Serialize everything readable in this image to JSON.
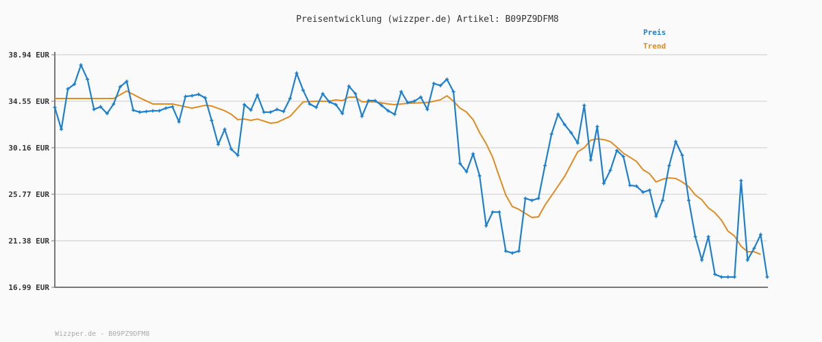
{
  "chart_data": {
    "type": "line",
    "title": "Preisentwicklung (wizzper.de) Artikel: B09PZ9DFM8",
    "xlabel": "",
    "ylabel": "",
    "ylim": [
      16.99,
      38.94
    ],
    "y_ticks": [
      "38.94 EUR",
      "34.55 EUR",
      "30.16 EUR",
      "25.77 EUR",
      "21.38 EUR",
      "16.99 EUR"
    ],
    "y_tick_values": [
      38.94,
      34.55,
      30.16,
      25.77,
      21.38,
      16.99
    ],
    "grid": true,
    "legend_placement": "top-right",
    "series": [
      {
        "name": "Preis",
        "color": "#1a7fcf",
        "markers": true,
        "values": [
          33.97,
          31.9,
          35.71,
          36.16,
          37.97,
          36.62,
          33.78,
          34.03,
          33.39,
          34.29,
          35.91,
          36.42,
          33.71,
          33.52,
          33.58,
          33.65,
          33.65,
          33.9,
          34.03,
          32.61,
          35.0,
          35.07,
          35.2,
          34.87,
          32.74,
          30.48,
          31.9,
          30.03,
          29.45,
          34.23,
          33.71,
          35.13,
          33.52,
          33.52,
          33.78,
          33.58,
          34.81,
          37.2,
          35.58,
          34.29,
          33.97,
          35.26,
          34.49,
          34.23,
          33.39,
          35.97,
          35.26,
          33.13,
          34.61,
          34.61,
          34.16,
          33.65,
          33.32,
          35.45,
          34.42,
          34.55,
          34.94,
          33.78,
          36.23,
          36.03,
          36.62,
          35.45,
          28.67,
          27.9,
          29.58,
          27.51,
          22.8,
          24.09,
          24.09,
          20.41,
          20.22,
          20.41,
          25.38,
          25.19,
          25.38,
          28.48,
          31.45,
          33.32,
          32.35,
          31.58,
          30.61,
          34.16,
          29.0,
          32.16,
          26.8,
          28.03,
          29.9,
          29.32,
          26.61,
          26.54,
          25.96,
          26.16,
          23.7,
          25.19,
          28.48,
          30.74,
          29.45,
          25.19,
          21.77,
          19.57,
          21.77,
          18.22,
          17.96,
          17.96,
          17.96,
          27.06,
          19.57,
          20.67,
          21.96,
          17.96
        ]
      },
      {
        "name": "Trend",
        "color": "#e08a1e",
        "markers": false,
        "points": [
          [
            0,
            34.81
          ],
          [
            9,
            34.81
          ],
          [
            11,
            35.52
          ],
          [
            13,
            34.87
          ],
          [
            15,
            34.29
          ],
          [
            18,
            34.29
          ],
          [
            20,
            34.03
          ],
          [
            21,
            33.9
          ],
          [
            23,
            34.16
          ],
          [
            24,
            34.1
          ],
          [
            26,
            33.65
          ],
          [
            27,
            33.32
          ],
          [
            28,
            32.81
          ],
          [
            29,
            32.87
          ],
          [
            30,
            32.74
          ],
          [
            31,
            32.87
          ],
          [
            33,
            32.48
          ],
          [
            34,
            32.55
          ],
          [
            36,
            33.13
          ],
          [
            38,
            34.49
          ],
          [
            40,
            34.55
          ],
          [
            42,
            34.55
          ],
          [
            43,
            34.68
          ],
          [
            44,
            34.61
          ],
          [
            45,
            34.94
          ],
          [
            46,
            34.94
          ],
          [
            47,
            34.49
          ],
          [
            49,
            34.49
          ],
          [
            51,
            34.29
          ],
          [
            52,
            34.23
          ],
          [
            54,
            34.36
          ],
          [
            57,
            34.42
          ],
          [
            59,
            34.68
          ],
          [
            60,
            35.07
          ],
          [
            61,
            34.55
          ],
          [
            62,
            33.9
          ],
          [
            63,
            33.52
          ],
          [
            64,
            32.81
          ],
          [
            65,
            31.58
          ],
          [
            66,
            30.55
          ],
          [
            67,
            29.26
          ],
          [
            68,
            27.45
          ],
          [
            69,
            25.7
          ],
          [
            70,
            24.61
          ],
          [
            71,
            24.35
          ],
          [
            72,
            23.96
          ],
          [
            73,
            23.58
          ],
          [
            74,
            23.64
          ],
          [
            75,
            24.74
          ],
          [
            76,
            25.64
          ],
          [
            77,
            26.54
          ],
          [
            78,
            27.45
          ],
          [
            79,
            28.61
          ],
          [
            80,
            29.77
          ],
          [
            81,
            30.16
          ],
          [
            82,
            30.87
          ],
          [
            83,
            31.0
          ],
          [
            84,
            30.93
          ],
          [
            85,
            30.74
          ],
          [
            86,
            30.22
          ],
          [
            87,
            29.64
          ],
          [
            88,
            29.26
          ],
          [
            89,
            28.87
          ],
          [
            90,
            28.09
          ],
          [
            91,
            27.71
          ],
          [
            92,
            26.93
          ],
          [
            93,
            27.19
          ],
          [
            94,
            27.32
          ],
          [
            95,
            27.26
          ],
          [
            96,
            26.93
          ],
          [
            97,
            26.48
          ],
          [
            98,
            25.7
          ],
          [
            99,
            25.25
          ],
          [
            100,
            24.48
          ],
          [
            101,
            24.03
          ],
          [
            102,
            23.32
          ],
          [
            103,
            22.29
          ],
          [
            104,
            21.83
          ],
          [
            105,
            20.86
          ],
          [
            106,
            20.35
          ],
          [
            107,
            20.35
          ],
          [
            108,
            20.09
          ]
        ]
      }
    ]
  },
  "footer": "Wizzper.de - B09PZ9DFM8"
}
